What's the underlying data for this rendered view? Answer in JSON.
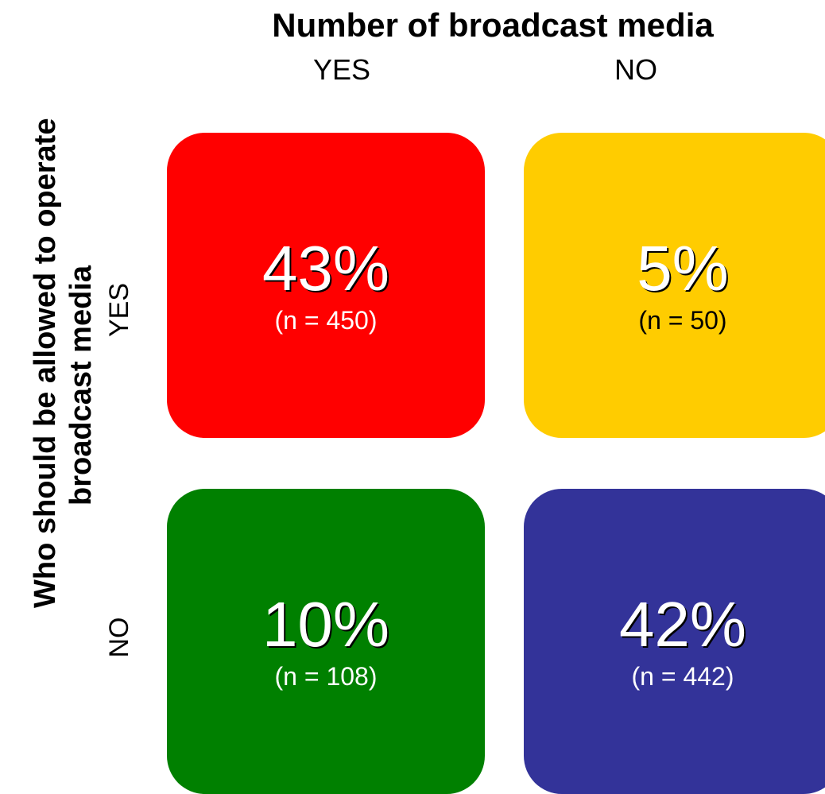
{
  "chart_data": {
    "type": "table",
    "title": "Number of broadcast media",
    "column_labels": [
      "YES",
      "NO"
    ],
    "row_title_lines": [
      "Who should be allowed to operate",
      "broadcast media"
    ],
    "row_labels": [
      "YES",
      "NO"
    ],
    "cells": [
      {
        "row": "YES",
        "col": "YES",
        "percent": "43%",
        "n": "(n = 450)",
        "value": 450,
        "color": "#ff0000",
        "text_color": "#ffffff"
      },
      {
        "row": "YES",
        "col": "NO",
        "percent": "5%",
        "n": "(n = 50)",
        "value": 50,
        "color": "#ffcc00",
        "text_color": "#000000"
      },
      {
        "row": "NO",
        "col": "YES",
        "percent": "10%",
        "n": "(n = 108)",
        "value": 108,
        "color": "#008000",
        "text_color": "#ffffff"
      },
      {
        "row": "NO",
        "col": "NO",
        "percent": "42%",
        "n": "(n = 442)",
        "value": 442,
        "color": "#333399",
        "text_color": "#ffffff"
      }
    ]
  }
}
